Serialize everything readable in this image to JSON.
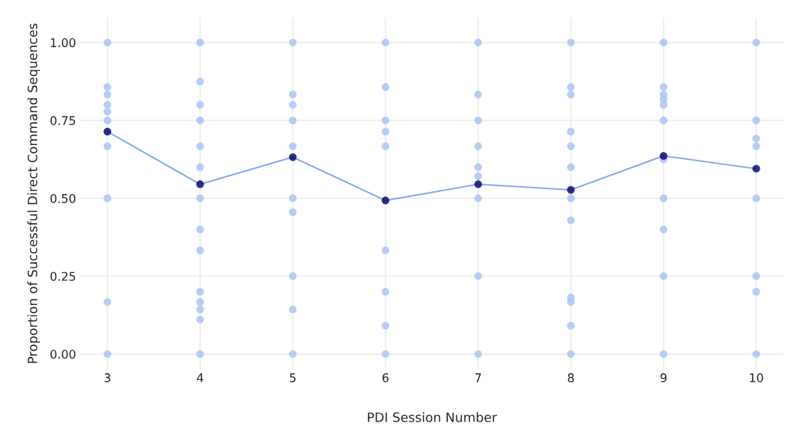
{
  "chart_data": {
    "type": "line",
    "xlabel": "PDI Session Number",
    "ylabel": "Proportion of Successful Direct Command Sequences",
    "xlim": [
      2.7,
      10.3
    ],
    "xticks": [
      3,
      4,
      5,
      6,
      7,
      8,
      9,
      10
    ],
    "ylim": [
      -0.05,
      1.08
    ],
    "yticks": [
      {
        "value": 0,
        "label": "0.00"
      },
      {
        "value": 0.25,
        "label": "0.25"
      },
      {
        "value": 0.5,
        "label": "0.50"
      },
      {
        "value": 0.75,
        "label": "0.75"
      },
      {
        "value": 1,
        "label": "1.00"
      }
    ],
    "grid": true,
    "legend": false,
    "marker": "circle",
    "series": [
      {
        "type": "scatter",
        "color": "#a9c4f3",
        "x": [
          3,
          3,
          3,
          3,
          3,
          3,
          3,
          3,
          3,
          3,
          4,
          4,
          4,
          4,
          4,
          4,
          4,
          4,
          4,
          4,
          4,
          4,
          4,
          4,
          5,
          5,
          5,
          5,
          5,
          5,
          5,
          5,
          5,
          5,
          6,
          6,
          6,
          6,
          6,
          6,
          6,
          6,
          6,
          7,
          7,
          7,
          7,
          7,
          7,
          7,
          7,
          7,
          8,
          8,
          8,
          8,
          8,
          8,
          8,
          8,
          8,
          8,
          8,
          8,
          9,
          9,
          9,
          9,
          9,
          9,
          9,
          9,
          9,
          9,
          9,
          10,
          10,
          10,
          10,
          10,
          10,
          10,
          10
        ],
        "values": [
          1,
          0.857,
          0.833,
          0.8,
          0.778,
          0.75,
          0.667,
          0.5,
          0.167,
          0,
          1,
          0.875,
          0.8,
          0.75,
          0.667,
          0.6,
          0.5,
          0.4,
          0.333,
          0.2,
          0.167,
          0.143,
          0.111,
          0,
          1,
          0.833,
          0.8,
          0.75,
          0.667,
          0.5,
          0.455,
          0.25,
          0.143,
          0,
          1,
          0.857,
          0.75,
          0.714,
          0.667,
          0.333,
          0.2,
          0.091,
          0,
          1,
          0.833,
          0.75,
          0.667,
          0.6,
          0.571,
          0.5,
          0.25,
          0,
          1,
          0.857,
          0.833,
          0.714,
          0.667,
          0.6,
          0.5,
          0.429,
          0.182,
          0.167,
          0.091,
          0,
          1,
          0.857,
          0.833,
          0.818,
          0.8,
          0.75,
          0.625,
          0.5,
          0.4,
          0.25,
          0,
          1,
          0.75,
          0.692,
          0.667,
          0.5,
          0.25,
          0.2,
          0
        ]
      },
      {
        "type": "line",
        "color": "#7ea6ef",
        "marker": "none",
        "x": [
          3,
          4,
          5,
          6,
          7,
          8,
          9,
          10
        ],
        "values": [
          0.714,
          0.545,
          0.632,
          0.493,
          0.545,
          0.527,
          0.636,
          0.595
        ]
      },
      {
        "type": "scatter",
        "color": "#0a0a6e",
        "x": [
          3,
          4,
          5,
          6,
          7,
          8,
          9,
          10
        ],
        "values": [
          0.714,
          0.545,
          0.632,
          0.493,
          0.545,
          0.527,
          0.636,
          0.595
        ]
      }
    ]
  }
}
